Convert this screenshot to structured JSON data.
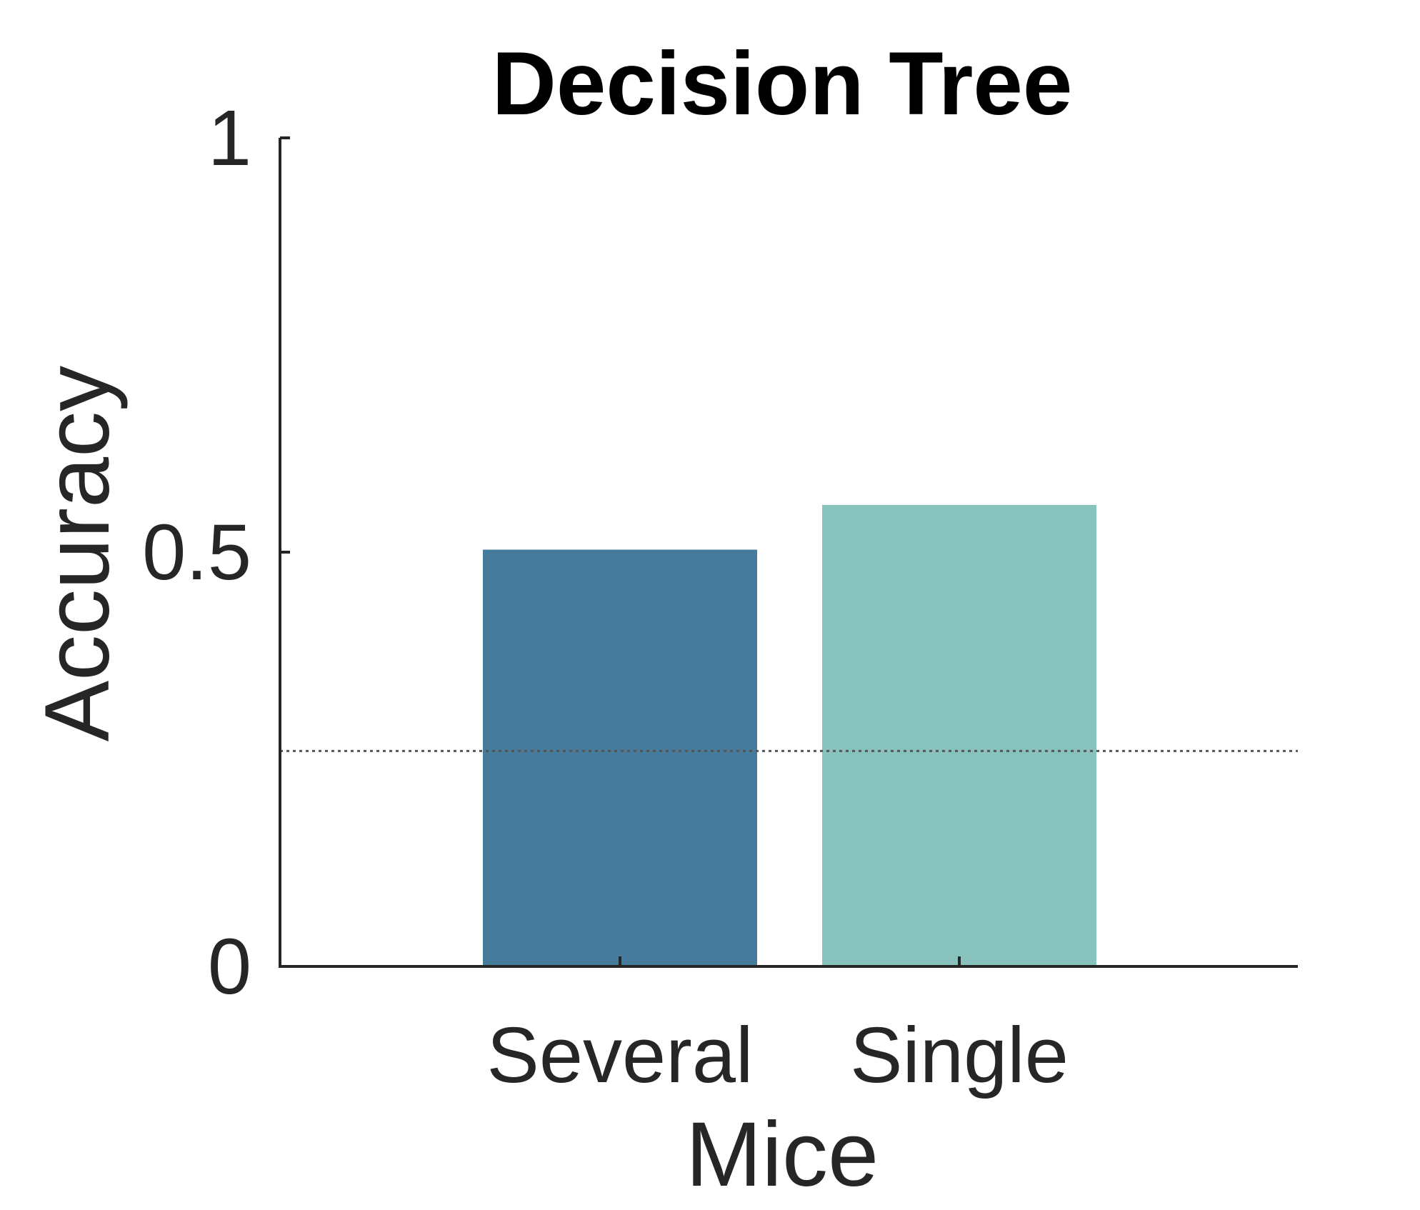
{
  "chart_data": {
    "type": "bar",
    "title": "Decision Tree",
    "xlabel": "Mice",
    "ylabel": "Accuracy",
    "categories": [
      "Several",
      "Single"
    ],
    "values": [
      0.503,
      0.557
    ],
    "colors": [
      "#477b9c",
      "#87c3bc"
    ],
    "ylim": [
      0,
      1
    ],
    "yticks": [
      "0",
      "0.5",
      "1"
    ],
    "reference_line": 0.26,
    "grid": false,
    "legend": "none"
  }
}
